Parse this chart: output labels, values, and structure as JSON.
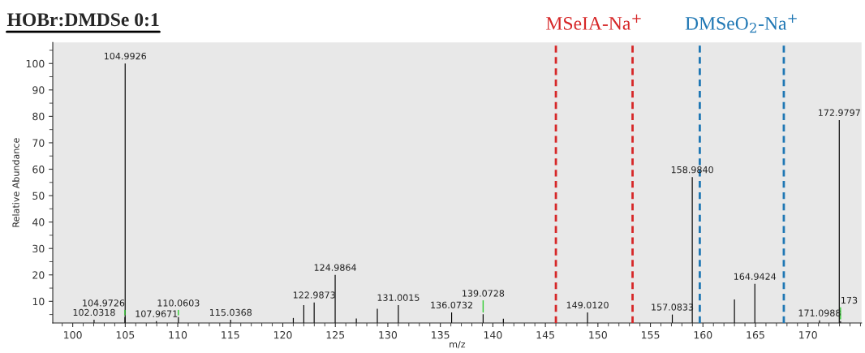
{
  "chart_data": {
    "type": "bar",
    "title": "HOBr:DMDSe 0:1",
    "xlabel": "m/z",
    "ylabel": "Relative Abundance",
    "x": [
      102.0318,
      104.9726,
      104.9926,
      107.9671,
      110.0603,
      115.0368,
      121.0,
      122.0,
      122.9873,
      124.9864,
      127.0,
      129.0,
      131.0015,
      136.0732,
      139.0728,
      141.0,
      149.012,
      157.0833,
      158.984,
      163.0,
      164.9424,
      171.0988,
      172.9797,
      173.1
    ],
    "values": [
      3,
      4,
      100,
      2.5,
      4,
      3,
      3.7,
      8.6,
      9.6,
      20,
      3.5,
      7.2,
      8.6,
      5.8,
      5.1,
      3.4,
      5.8,
      5,
      57,
      10.7,
      16.6,
      2.8,
      78.6,
      2.5
    ],
    "color": "#000000",
    "annotations": [
      {
        "text": "102.0318",
        "x": 102.0318,
        "y": 3
      },
      {
        "text": "104.9726",
        "x": 104.9726,
        "y": 4
      },
      {
        "text": "104.9926",
        "x": 104.9926,
        "y": 100
      },
      {
        "text": "107.9671",
        "x": 107.9671,
        "y": 2.5
      },
      {
        "text": "110.0603",
        "x": 110.0603,
        "y": 4
      },
      {
        "text": "115.0368",
        "x": 115.0368,
        "y": 3
      },
      {
        "text": "122.9873",
        "x": 122.9873,
        "y": 9.6
      },
      {
        "text": "124.9864",
        "x": 124.9864,
        "y": 20
      },
      {
        "text": "131.0015",
        "x": 131.0015,
        "y": 8.6
      },
      {
        "text": "136.0732",
        "x": 136.0732,
        "y": 5.8
      },
      {
        "text": "139.0728",
        "x": 139.0728,
        "y": 5.1
      },
      {
        "text": "149.0120",
        "x": 149.012,
        "y": 5.8
      },
      {
        "text": "157.0833",
        "x": 157.0833,
        "y": 5
      },
      {
        "text": "158.9840",
        "x": 158.984,
        "y": 57
      },
      {
        "text": "164.9424",
        "x": 164.9424,
        "y": 16.6
      },
      {
        "text": "171.0988",
        "x": 171.0988,
        "y": 2.8
      },
      {
        "text": "172.9797",
        "x": 172.9797,
        "y": 78.6
      },
      {
        "text": "173",
        "x": 173.1,
        "y": 2.5
      }
    ],
    "xlim": [
      98.1,
      175.1
    ],
    "xticks": [
      100,
      105,
      110,
      115,
      120,
      125,
      130,
      135,
      140,
      145,
      150,
      155,
      160,
      165,
      170
    ],
    "ylim": [
      1.8,
      108
    ],
    "yticks": [
      10,
      20,
      30,
      40,
      50,
      60,
      70,
      80,
      90,
      100
    ],
    "ref_lines": [
      {
        "axis": "x",
        "value": 146.0,
        "label": "MSeIA-Na$^{+}$",
        "color": "#d62728",
        "line_style": "dashed"
      },
      {
        "axis": "x",
        "value": 153.3,
        "color": "#d62728",
        "line_style": "dashed"
      },
      {
        "axis": "x",
        "value": 159.7,
        "label": "DMSeO$_{2}$-Na$^{+}$",
        "color": "#1f77b4",
        "line_style": "dashed"
      },
      {
        "axis": "x",
        "value": 167.7,
        "color": "#1f77b4",
        "line_style": "dashed"
      }
    ],
    "grid": false,
    "legend": false
  }
}
